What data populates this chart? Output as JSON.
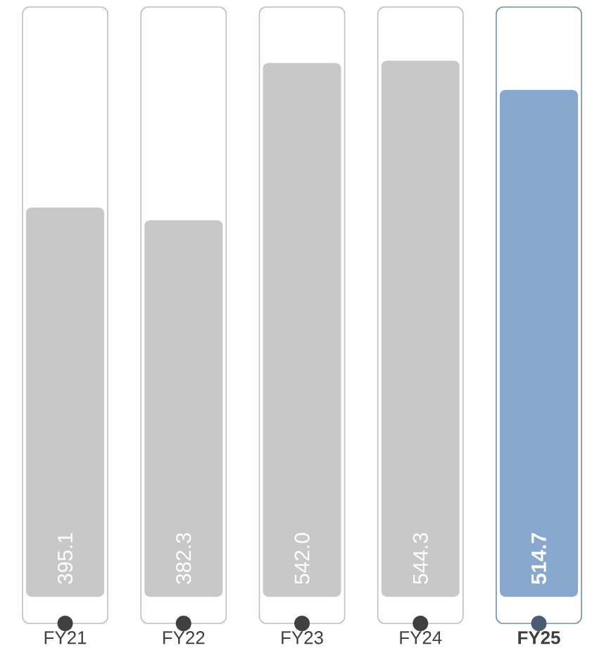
{
  "chart_data": {
    "type": "bar",
    "categories": [
      "FY21",
      "FY22",
      "FY23",
      "FY24",
      "FY25"
    ],
    "values": [
      395.1,
      382.3,
      542.0,
      544.3,
      514.7
    ],
    "value_labels": [
      "395.1",
      "382.3",
      "542.0",
      "544.3",
      "514.7"
    ],
    "colors": [
      "#c8c8c8",
      "#c8c8c8",
      "#c8c8c8",
      "#c8c8c8",
      "#87a7cf"
    ]
  }
}
